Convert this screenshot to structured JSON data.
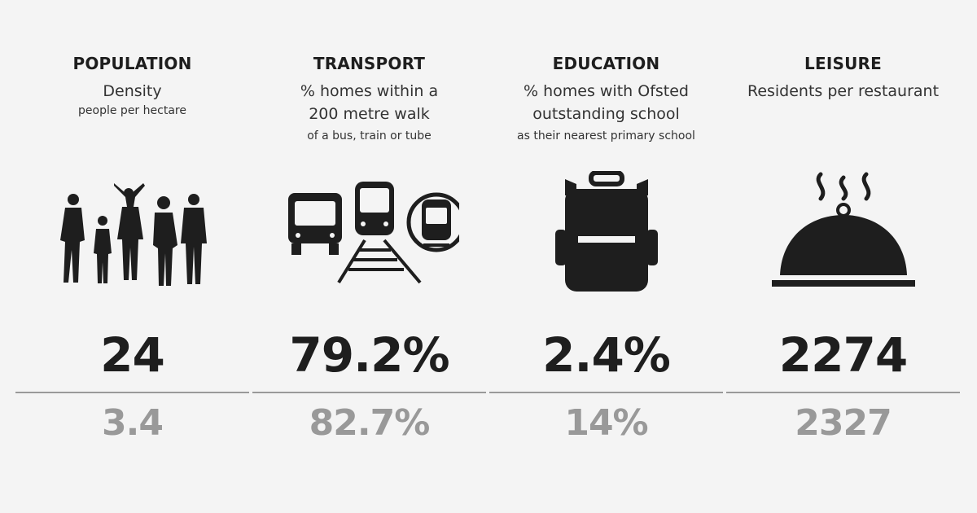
{
  "metrics": [
    {
      "title": "POPULATION",
      "subtitle": "Density",
      "note": "people per hectare",
      "icon": "family-icon",
      "value": "24",
      "comparison": "3.4"
    },
    {
      "title": "TRANSPORT",
      "subtitle": "% homes within a 200 metre walk",
      "note": "of a bus, train or tube",
      "icon": "transport-icon",
      "value": "79.2%",
      "comparison": "82.7%"
    },
    {
      "title": "EDUCATION",
      "subtitle": "% homes with Ofsted outstanding school",
      "note": "as their nearest primary school",
      "icon": "backpack-icon",
      "value": "2.4%",
      "comparison": "14%"
    },
    {
      "title": "LEISURE",
      "subtitle": "Residents per restaurant",
      "note": "",
      "icon": "food-cloche-icon",
      "value": "2274",
      "comparison": "2327"
    }
  ],
  "colors": {
    "background": "#f4f4f4",
    "value": "#1e1e1e",
    "comparison": "#999999",
    "icon": "#1e1e1e"
  }
}
